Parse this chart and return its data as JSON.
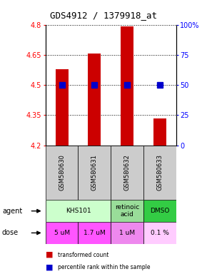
{
  "title": "GDS4912 / 1379918_at",
  "samples": [
    "GSM580630",
    "GSM580631",
    "GSM580632",
    "GSM580633"
  ],
  "bar_values": [
    4.58,
    4.655,
    4.79,
    4.335
  ],
  "bar_base": 4.2,
  "percentile_values": [
    50,
    50,
    50,
    50
  ],
  "ylim_left": [
    4.2,
    4.8
  ],
  "ylim_right": [
    0,
    100
  ],
  "yticks_left": [
    4.2,
    4.35,
    4.5,
    4.65,
    4.8
  ],
  "yticks_right": [
    0,
    25,
    50,
    75,
    100
  ],
  "ytick_labels_left": [
    "4.2",
    "4.35",
    "4.5",
    "4.65",
    "4.8"
  ],
  "ytick_labels_right": [
    "0",
    "25",
    "50",
    "75",
    "100%"
  ],
  "bar_color": "#cc0000",
  "percentile_color": "#0000cc",
  "agents": [
    {
      "label": "KHS101",
      "span": [
        0,
        1
      ],
      "color": "#ccffcc"
    },
    {
      "label": "retinoic\nacid",
      "span": [
        2,
        2
      ],
      "color": "#99dd99"
    },
    {
      "label": "DMSO",
      "span": [
        3,
        3
      ],
      "color": "#33cc44"
    }
  ],
  "doses": [
    {
      "label": "5 uM",
      "idx": 0,
      "color": "#ff55ff"
    },
    {
      "label": "1.7 uM",
      "idx": 1,
      "color": "#ff55ff"
    },
    {
      "label": "1 uM",
      "idx": 2,
      "color": "#ee88ee"
    },
    {
      "label": "0.1 %",
      "idx": 3,
      "color": "#ffccff"
    }
  ],
  "sample_bg_color": "#cccccc",
  "title_fontsize": 9,
  "bar_width": 0.4,
  "percentile_marker_size": 6
}
